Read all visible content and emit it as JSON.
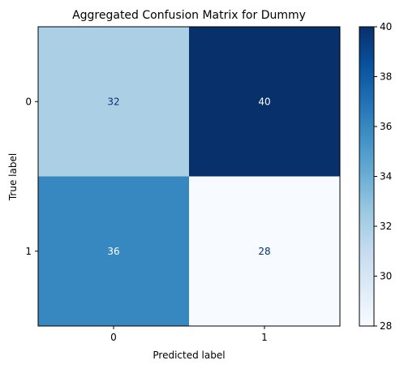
{
  "chart_data": {
    "type": "heatmap",
    "title": "Aggregated Confusion Matrix for Dummy",
    "xlabel": "Predicted label",
    "ylabel": "True label",
    "x_categories": [
      "0",
      "1"
    ],
    "y_categories": [
      "0",
      "1"
    ],
    "values": [
      [
        32,
        40
      ],
      [
        36,
        28
      ]
    ],
    "colorscale": "Blues",
    "colorbar": {
      "range": [
        28,
        40
      ],
      "ticks": [
        "28",
        "30",
        "32",
        "34",
        "36",
        "38",
        "40"
      ]
    }
  }
}
